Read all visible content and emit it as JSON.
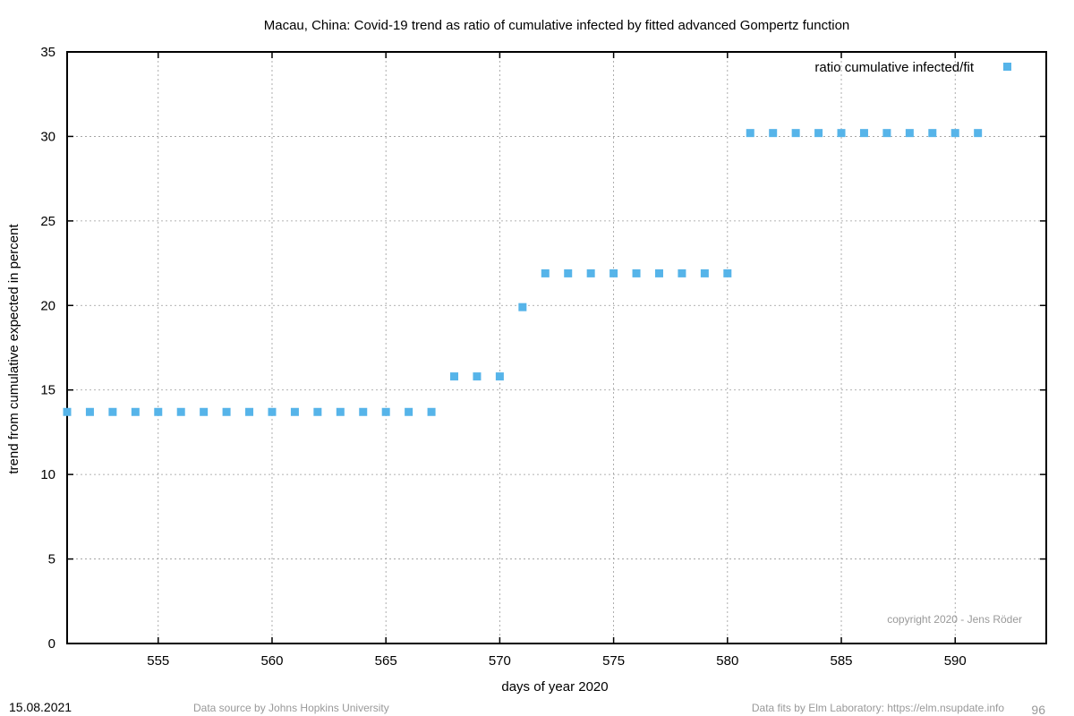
{
  "chart_data": {
    "type": "scatter",
    "title": "Macau,  China: Covid-19 trend as ratio of cumulative infected by fitted advanced Gompertz function",
    "xlabel": "days of year 2020",
    "ylabel": "trend from cumulative expected in percent",
    "xlim": [
      551,
      594
    ],
    "ylim": [
      0,
      35
    ],
    "xticks": [
      555,
      560,
      565,
      570,
      575,
      580,
      585,
      590
    ],
    "yticks": [
      0,
      5,
      10,
      15,
      20,
      25,
      30,
      35
    ],
    "grid": true,
    "legend_position": "top-right",
    "series": [
      {
        "name": "ratio cumulative infected/fit",
        "color": "#56b4e9",
        "marker": "square",
        "x": [
          551,
          552,
          553,
          554,
          555,
          556,
          557,
          558,
          559,
          560,
          561,
          562,
          563,
          564,
          565,
          566,
          567,
          568,
          569,
          570,
          571,
          572,
          573,
          574,
          575,
          576,
          577,
          578,
          579,
          580,
          581,
          582,
          583,
          584,
          585,
          586,
          587,
          588,
          589,
          590,
          591
        ],
        "y": [
          13.7,
          13.7,
          13.7,
          13.7,
          13.7,
          13.7,
          13.7,
          13.7,
          13.7,
          13.7,
          13.7,
          13.7,
          13.7,
          13.7,
          13.7,
          13.7,
          13.7,
          15.8,
          15.8,
          15.8,
          19.9,
          21.9,
          21.9,
          21.9,
          21.9,
          21.9,
          21.9,
          21.9,
          21.9,
          21.9,
          30.2,
          30.2,
          30.2,
          30.2,
          30.2,
          30.2,
          30.2,
          30.2,
          30.2,
          30.2,
          30.2
        ]
      }
    ]
  },
  "annotations": {
    "copyright": "copyright 2020 - Jens Röder",
    "date": "15.08.2021",
    "source": "Data source by Johns Hopkins University",
    "fits": "Data fits by Elm Laboratory: https://elm.nsupdate.info",
    "page_number": "96"
  }
}
